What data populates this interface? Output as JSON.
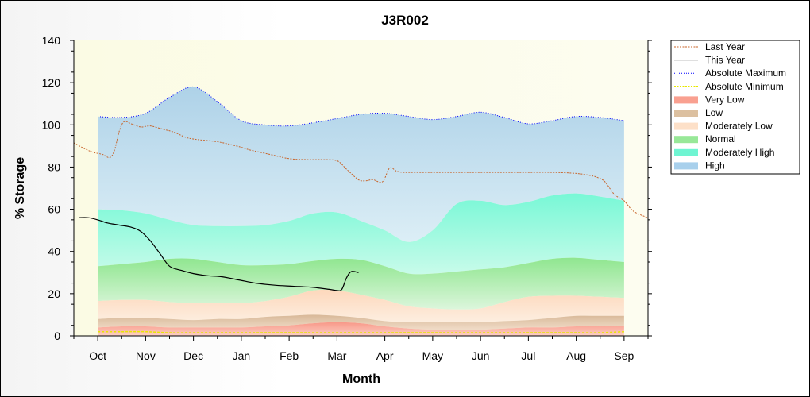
{
  "chart_data": {
    "type": "area",
    "title": "J3R002",
    "xlabel": "Month",
    "ylabel": "% Storage",
    "ylim": [
      0,
      140
    ],
    "yticks": [
      0,
      20,
      40,
      60,
      80,
      100,
      120,
      140
    ],
    "categories": [
      "Oct",
      "Nov",
      "Dec",
      "Jan",
      "Feb",
      "Mar",
      "Apr",
      "May",
      "Jun",
      "Jul",
      "Aug",
      "Sep"
    ],
    "xlim": [
      -0.5,
      11.5
    ],
    "band_x": [
      0,
      0.5,
      1,
      1.5,
      2,
      2.5,
      3,
      3.5,
      4,
      4.5,
      5,
      5.5,
      6,
      6.5,
      7,
      7.5,
      8,
      8.5,
      9,
      9.5,
      10,
      10.5,
      11
    ],
    "band_boundaries": {
      "abs_min": [
        2,
        2,
        2,
        1.5,
        1.5,
        1.5,
        1.5,
        1.5,
        1.5,
        1.5,
        1.5,
        1.5,
        1.5,
        1.5,
        1.5,
        1.5,
        1.5,
        1.5,
        1.5,
        1.5,
        1.5,
        1.5,
        2
      ],
      "very_low_top": [
        4,
        4.5,
        4.5,
        4,
        4,
        4,
        4,
        4.5,
        5,
        6,
        6.5,
        6,
        4.5,
        3.5,
        3,
        3,
        3,
        3.5,
        4,
        4,
        4.5,
        4.5,
        4.5
      ],
      "low_top": [
        8,
        8.5,
        8.5,
        8,
        7.5,
        8,
        8,
        9,
        9.5,
        10,
        9.5,
        8.5,
        7,
        6.5,
        6.5,
        6.5,
        6.5,
        7,
        7.5,
        8.5,
        9.5,
        9.5,
        9.5
      ],
      "mod_low_top": [
        16.5,
        17,
        17,
        16,
        15.5,
        15.5,
        15.5,
        16.5,
        18.5,
        21.5,
        21.5,
        19.5,
        17,
        14,
        13,
        12.5,
        13,
        16,
        18.5,
        19,
        19,
        18.5,
        18
      ],
      "normal_top": [
        33,
        34,
        35,
        36.5,
        36.5,
        35,
        33.5,
        33.5,
        34,
        35.5,
        36.5,
        36,
        33,
        29.5,
        29.5,
        30.5,
        31.5,
        32.5,
        34.5,
        36.5,
        37,
        36,
        35
      ],
      "mod_high_top": [
        60,
        59.5,
        58,
        55,
        52.5,
        52,
        52,
        52.5,
        54.5,
        58,
        58.5,
        54.5,
        50,
        44.5,
        50,
        62.5,
        64,
        62,
        63.5,
        66.5,
        67.5,
        66,
        64
      ],
      "high_top": [
        104,
        103.5,
        105.5,
        113,
        118,
        111,
        102,
        100,
        99.5,
        101,
        103,
        105,
        105.5,
        104,
        102.5,
        104,
        106,
        103.5,
        100.5,
        102,
        104,
        103.5,
        102
      ]
    },
    "series": [
      {
        "name": "Last Year",
        "x": [
          -0.5,
          -0.3,
          -0.1,
          0.1,
          0.25,
          0.35,
          0.45,
          0.55,
          0.7,
          0.9,
          1.1,
          1.35,
          1.6,
          1.85,
          2.1,
          2.5,
          2.9,
          3.2,
          3.6,
          4.0,
          4.4,
          4.7,
          5.0,
          5.2,
          5.45,
          5.6,
          5.75,
          5.95,
          6.1,
          6.25,
          6.4,
          6.6,
          7.0,
          7.5,
          8.0,
          8.5,
          9.0,
          9.5,
          10.0,
          10.3,
          10.45,
          10.6,
          10.8,
          11.0,
          11.2,
          11.5
        ],
        "values": [
          91.5,
          89,
          87,
          86,
          84.5,
          88,
          97,
          101.5,
          100.5,
          99,
          99.5,
          98,
          96.5,
          94,
          93,
          92,
          90,
          88,
          86,
          84,
          83.5,
          83.5,
          83,
          79,
          74,
          73.5,
          74,
          73,
          79.5,
          78,
          77.5,
          77.5,
          77.5,
          77.5,
          77.5,
          77.5,
          77.5,
          77.5,
          77,
          76,
          75,
          73,
          67,
          64,
          59,
          56
        ]
      },
      {
        "name": "This Year",
        "x": [
          -0.4,
          -0.2,
          0.0,
          0.2,
          0.45,
          0.7,
          0.9,
          1.1,
          1.3,
          1.5,
          1.75,
          2.0,
          2.3,
          2.6,
          2.95,
          3.3,
          3.7,
          4.1,
          4.5,
          4.85,
          5.0,
          5.1,
          5.2,
          5.3,
          5.45
        ],
        "values": [
          56,
          56,
          55,
          53.5,
          52.5,
          51.5,
          49.5,
          45,
          39,
          33,
          31,
          29.5,
          28.5,
          28,
          26.5,
          25,
          24,
          23.5,
          23,
          22,
          21.5,
          22,
          27.5,
          30.5,
          30
        ]
      }
    ],
    "legend": {
      "placement": "right",
      "entries": [
        {
          "label": "Last Year",
          "style": "dash-line",
          "color": "#c8642a"
        },
        {
          "label": "This Year",
          "style": "line",
          "color": "#000000"
        },
        {
          "label": "Absolute Maximum",
          "style": "dot-line",
          "color": "#0000ff"
        },
        {
          "label": "Absolute Minimum",
          "style": "dash-line",
          "color": "#e8e800"
        },
        {
          "label": "Very Low",
          "style": "swatch",
          "color": "#f9a090"
        },
        {
          "label": "Low",
          "style": "swatch",
          "color": "#dcc0a0"
        },
        {
          "label": "Moderately Low",
          "style": "swatch",
          "color": "#fde0c8"
        },
        {
          "label": "Normal",
          "style": "swatch",
          "color": "#98e898"
        },
        {
          "label": "Moderately High",
          "style": "swatch",
          "color": "#6ff5d2"
        },
        {
          "label": "High",
          "style": "swatch",
          "color": "#a8d0ec"
        }
      ]
    },
    "colors": {
      "very_low": "#f9a090",
      "low": "#dcc0a0",
      "mod_low": "#fde0c8",
      "normal": "#98e898",
      "mod_high": "#80f8d8",
      "high": "#b8d8ea",
      "plot_bg": "#fcfcea",
      "last_year": "#c8642a",
      "this_year": "#000000",
      "abs_max": "#0000ff",
      "abs_min": "#e8e800"
    },
    "grid": false
  }
}
